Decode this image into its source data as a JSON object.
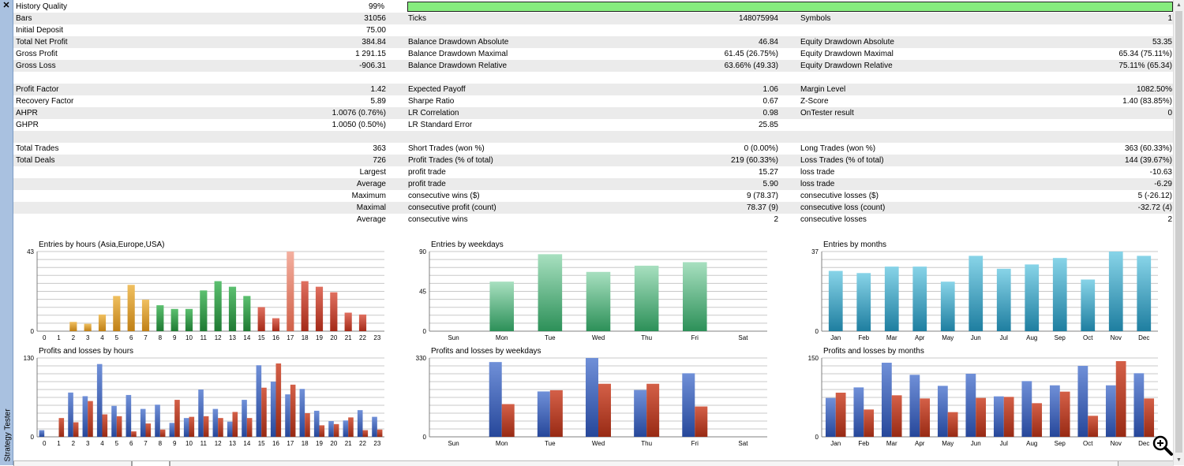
{
  "sidebar": {
    "close_glyph": "✕",
    "label": "Strategy Tester"
  },
  "history_quality": {
    "label": "History Quality",
    "value": "99%",
    "fraction": 0.99,
    "bar_color": "#86ec7e"
  },
  "rows": [
    {
      "alt": true,
      "cells": [
        "Bars",
        "31056",
        "Ticks",
        "148075994",
        "Symbols",
        "1"
      ]
    },
    {
      "alt": false,
      "cells": [
        "Initial Deposit",
        "75.00",
        "",
        "",
        "",
        ""
      ]
    },
    {
      "alt": true,
      "cells": [
        "Total Net Profit",
        "384.84",
        "Balance Drawdown Absolute",
        "46.84",
        "Equity Drawdown Absolute",
        "53.35"
      ]
    },
    {
      "alt": false,
      "cells": [
        "Gross Profit",
        "1 291.15",
        "Balance Drawdown Maximal",
        "61.45 (26.75%)",
        "Equity Drawdown Maximal",
        "65.34 (75.11%)"
      ]
    },
    {
      "alt": true,
      "cells": [
        "Gross Loss",
        "-906.31",
        "Balance Drawdown Relative",
        "63.66% (49.33)",
        "Equity Drawdown Relative",
        "75.11% (65.34)"
      ]
    },
    {
      "alt": false,
      "cells": [
        "",
        "",
        "",
        "",
        "",
        ""
      ]
    },
    {
      "alt": true,
      "cells": [
        "Profit Factor",
        "1.42",
        "Expected Payoff",
        "1.06",
        "Margin Level",
        "1082.50%"
      ]
    },
    {
      "alt": false,
      "cells": [
        "Recovery Factor",
        "5.89",
        "Sharpe Ratio",
        "0.67",
        "Z-Score",
        "1.40 (83.85%)"
      ]
    },
    {
      "alt": true,
      "cells": [
        "AHPR",
        "1.0076 (0.76%)",
        "LR Correlation",
        "0.98",
        "OnTester result",
        "0"
      ]
    },
    {
      "alt": false,
      "cells": [
        "GHPR",
        "1.0050 (0.50%)",
        "LR Standard Error",
        "25.85",
        "",
        ""
      ]
    },
    {
      "alt": true,
      "cells": [
        "",
        "",
        "",
        "",
        "",
        ""
      ]
    },
    {
      "alt": false,
      "cells": [
        "Total Trades",
        "363",
        "Short Trades (won %)",
        "0 (0.00%)",
        "Long Trades (won %)",
        "363 (60.33%)"
      ]
    },
    {
      "alt": true,
      "cells": [
        "Total Deals",
        "726",
        "Profit Trades (% of total)",
        "219 (60.33%)",
        "Loss Trades (% of total)",
        "144 (39.67%)"
      ]
    },
    {
      "alt": false,
      "cells": [
        "",
        "Largest",
        "profit trade",
        "15.27",
        "loss trade",
        "-10.63"
      ]
    },
    {
      "alt": true,
      "cells": [
        "",
        "Average",
        "profit trade",
        "5.90",
        "loss trade",
        "-6.29"
      ]
    },
    {
      "alt": false,
      "cells": [
        "",
        "Maximum",
        "consecutive wins ($)",
        "9 (78.37)",
        "consecutive losses ($)",
        "5 (-26.12)"
      ]
    },
    {
      "alt": true,
      "cells": [
        "",
        "Maximal",
        "consecutive profit (count)",
        "78.37 (9)",
        "consecutive loss (count)",
        "-32.72 (4)"
      ]
    },
    {
      "alt": false,
      "cells": [
        "",
        "Average",
        "consecutive wins",
        "2",
        "consecutive losses",
        "2"
      ]
    }
  ],
  "colors": {
    "blue": "#3a62b0",
    "red": "#b33a22"
  },
  "chart_data": [
    {
      "type": "bar",
      "title": "Entries by hours (Asia,Europe,USA)",
      "ymax": 43,
      "yticks": [
        "43",
        "0"
      ],
      "categories": [
        "0",
        "1",
        "2",
        "3",
        "4",
        "5",
        "6",
        "7",
        "8",
        "9",
        "10",
        "11",
        "12",
        "13",
        "14",
        "15",
        "16",
        "17",
        "18",
        "19",
        "20",
        "21",
        "22",
        "23"
      ],
      "values": [
        0,
        0,
        5,
        4,
        9,
        19,
        25,
        17,
        14,
        12,
        12,
        22,
        27,
        24,
        19,
        13,
        7,
        43,
        27,
        24,
        21,
        10,
        9,
        0
      ],
      "colors": [
        "#d49a2a",
        "#d49a2a",
        "#d49a2a",
        "#d49a2a",
        "#d49a2a",
        "#d49a2a",
        "#d49a2a",
        "#d49a2a",
        "#2f9a45",
        "#2f9a45",
        "#2f9a45",
        "#2f9a45",
        "#2f9a45",
        "#2f9a45",
        "#2f9a45",
        "#c0503a",
        "#c0503a",
        "#e88a78",
        "#c0503a",
        "#c0503a",
        "#c0503a",
        "#c0503a",
        "#c0503a",
        "#c0503a"
      ]
    },
    {
      "type": "bar",
      "title": "Entries by weekdays",
      "ymax": 90,
      "yticks": [
        "90",
        "45",
        "0"
      ],
      "categories": [
        "Sun",
        "Mon",
        "Tue",
        "Wed",
        "Thu",
        "Fri",
        "Sat"
      ],
      "values": [
        0,
        56,
        87,
        67,
        74,
        78,
        0
      ],
      "color": "#4cb27a"
    },
    {
      "type": "bar",
      "title": "Entries by months",
      "ymax": 37,
      "yticks": [
        "37",
        "0"
      ],
      "categories": [
        "Jan",
        "Feb",
        "Mar",
        "Apr",
        "May",
        "Jun",
        "Jul",
        "Aug",
        "Sep",
        "Oct",
        "Nov",
        "Dec"
      ],
      "values": [
        28,
        27,
        30,
        30,
        23,
        35,
        29,
        31,
        34,
        24,
        37,
        35
      ],
      "color": "#3aa6c6"
    },
    {
      "type": "bar",
      "title": "Profits and losses by hours",
      "ymax": 130,
      "yticks": [
        "130",
        "0"
      ],
      "categories": [
        "0",
        "1",
        "2",
        "3",
        "4",
        "5",
        "6",
        "7",
        "8",
        "9",
        "10",
        "11",
        "12",
        "13",
        "14",
        "15",
        "16",
        "17",
        "18",
        "19",
        "20",
        "21",
        "22",
        "23"
      ],
      "series": [
        {
          "values": [
            11,
            0,
            73,
            67,
            120,
            51,
            69,
            46,
            53,
            23,
            31,
            78,
            46,
            25,
            61,
            118,
            91,
            70,
            79,
            43,
            26,
            27,
            44,
            33
          ]
        },
        {
          "values": [
            0,
            31,
            24,
            59,
            37,
            34,
            9,
            22,
            12,
            61,
            33,
            34,
            31,
            41,
            31,
            81,
            121,
            86,
            39,
            19,
            21,
            32,
            11,
            12
          ]
        }
      ]
    },
    {
      "type": "bar",
      "title": "Profits and losses by weekdays",
      "ymax": 330,
      "yticks": [
        "330",
        "0"
      ],
      "categories": [
        "Sun",
        "Mon",
        "Tue",
        "Wed",
        "Thu",
        "Fri",
        "Sat"
      ],
      "series": [
        {
          "values": [
            0,
            313,
            190,
            330,
            196,
            266,
            0
          ]
        },
        {
          "values": [
            0,
            137,
            195,
            222,
            222,
            127,
            0
          ]
        }
      ]
    },
    {
      "type": "bar",
      "title": "Profits and losses by months",
      "ymax": 150,
      "yticks": [
        "150",
        "0"
      ],
      "categories": [
        "Jan",
        "Feb",
        "Mar",
        "Apr",
        "May",
        "Jun",
        "Jul",
        "Aug",
        "Sep",
        "Oct",
        "Nov",
        "Dec"
      ],
      "series": [
        {
          "values": [
            74,
            94,
            141,
            118,
            97,
            120,
            77,
            106,
            98,
            135,
            98,
            121
          ]
        },
        {
          "values": [
            84,
            52,
            79,
            73,
            47,
            74,
            76,
            64,
            86,
            40,
            144,
            73
          ]
        }
      ]
    }
  ]
}
